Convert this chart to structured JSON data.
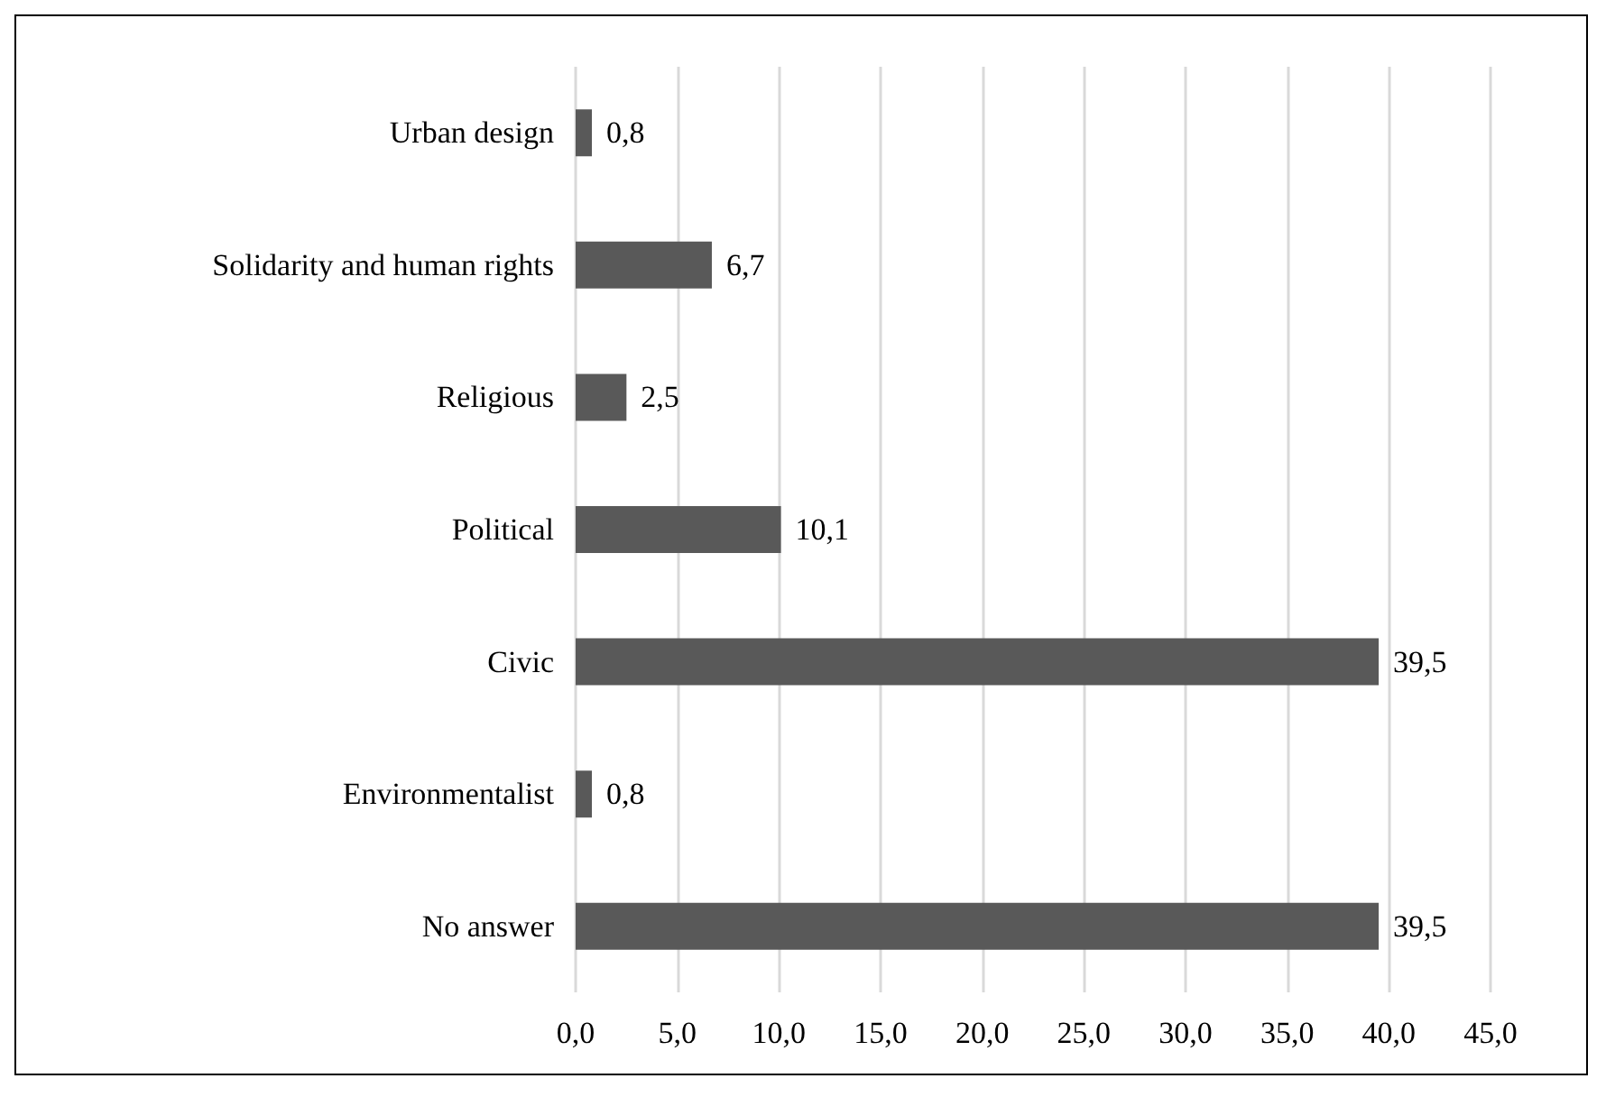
{
  "chart_data": {
    "type": "bar",
    "orientation": "horizontal",
    "categories": [
      "Urban design",
      "Solidarity and human rights",
      "Religious",
      "Political",
      "Civic",
      "Environmentalist",
      "No answer"
    ],
    "values": [
      0.8,
      6.7,
      2.5,
      10.1,
      39.5,
      0.8,
      39.5
    ],
    "value_labels": [
      "0,8",
      "6,7",
      "2,5",
      "10,1",
      "39,5",
      "0,8",
      "39,5"
    ],
    "color": "#595959",
    "xlim": [
      0,
      45
    ],
    "xticks": [
      {
        "value": 0,
        "label": "0,0"
      },
      {
        "value": 5,
        "label": "5,0"
      },
      {
        "value": 10,
        "label": "10,0"
      },
      {
        "value": 15,
        "label": "15,0"
      },
      {
        "value": 20,
        "label": "20,0"
      },
      {
        "value": 25,
        "label": "25,0"
      },
      {
        "value": 30,
        "label": "30,0"
      },
      {
        "value": 35,
        "label": "35,0"
      },
      {
        "value": 40,
        "label": "40,0"
      },
      {
        "value": 45,
        "label": "45,0"
      }
    ],
    "grid": "x"
  }
}
